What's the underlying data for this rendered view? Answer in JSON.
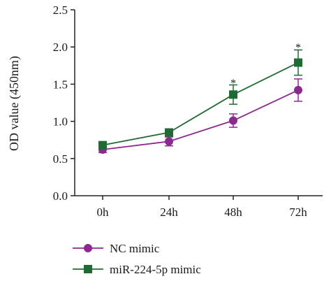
{
  "chart_data": {
    "type": "line",
    "title": "",
    "xlabel": "",
    "ylabel": "OD value (450nm)",
    "categories": [
      "0h",
      "24h",
      "48h",
      "72h"
    ],
    "ylim": [
      0.0,
      2.5
    ],
    "yticks": [
      "0.0",
      "0.5",
      "1.0",
      "1.5",
      "2.0",
      "2.5"
    ],
    "grid": false,
    "legend_position": "bottom-left",
    "series": [
      {
        "name": "NC mimic",
        "marker": "circle",
        "color": "#8B2A8E",
        "values": [
          0.62,
          0.73,
          1.01,
          1.42
        ],
        "errors": [
          0.04,
          0.06,
          0.09,
          0.15
        ]
      },
      {
        "name": "miR-224-5p mimic",
        "marker": "square",
        "color": "#1F6B33",
        "values": [
          0.68,
          0.85,
          1.36,
          1.79
        ],
        "errors": [
          0.03,
          0.05,
          0.13,
          0.17
        ]
      }
    ],
    "annotations": [
      {
        "text": "*",
        "category": "48h",
        "value": 1.54
      },
      {
        "text": "*",
        "category": "72h",
        "value": 2.02
      }
    ]
  }
}
